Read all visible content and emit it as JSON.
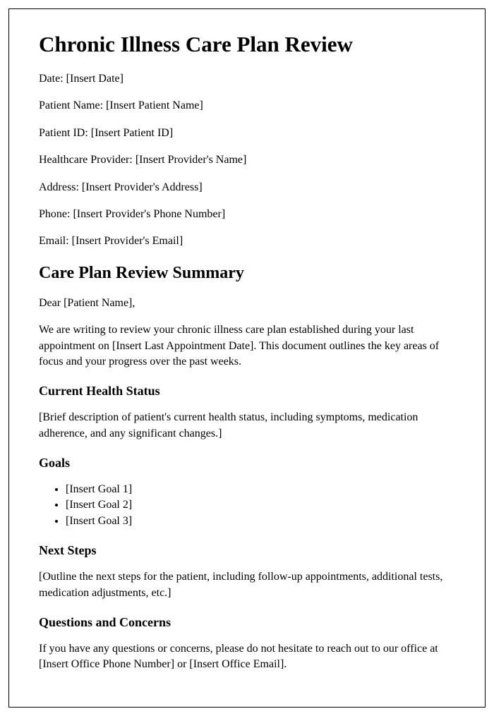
{
  "title": "Chronic Illness Care Plan Review",
  "fields": {
    "date": {
      "label": "Date:",
      "value": "[Insert Date]"
    },
    "patientName": {
      "label": "Patient Name:",
      "value": "[Insert Patient Name]"
    },
    "patientId": {
      "label": "Patient ID:",
      "value": "[Insert Patient ID]"
    },
    "provider": {
      "label": "Healthcare Provider:",
      "value": "[Insert Provider's Name]"
    },
    "address": {
      "label": "Address:",
      "value": "[Insert Provider's Address]"
    },
    "phone": {
      "label": "Phone:",
      "value": "[Insert Provider's Phone Number]"
    },
    "email": {
      "label": "Email:",
      "value": "[Insert Provider's Email]"
    }
  },
  "summary": {
    "heading": "Care Plan Review Summary",
    "salutation": "Dear [Patient Name],",
    "intro": "We are writing to review your chronic illness care plan established during your last appointment on [Insert Last Appointment Date]. This document outlines the key areas of focus and your progress over the past weeks."
  },
  "sections": {
    "healthStatus": {
      "heading": "Current Health Status",
      "body": "[Brief description of patient's current health status, including symptoms, medication adherence, and any significant changes.]"
    },
    "goals": {
      "heading": "Goals",
      "items": [
        "[Insert Goal 1]",
        "[Insert Goal 2]",
        "[Insert Goal 3]"
      ]
    },
    "nextSteps": {
      "heading": "Next Steps",
      "body": "[Outline the next steps for the patient, including follow-up appointments, additional tests, medication adjustments, etc.]"
    },
    "questions": {
      "heading": "Questions and Concerns",
      "body": "If you have any questions or concerns, please do not hesitate to reach out to our office at [Insert Office Phone Number] or [Insert Office Email]."
    }
  }
}
